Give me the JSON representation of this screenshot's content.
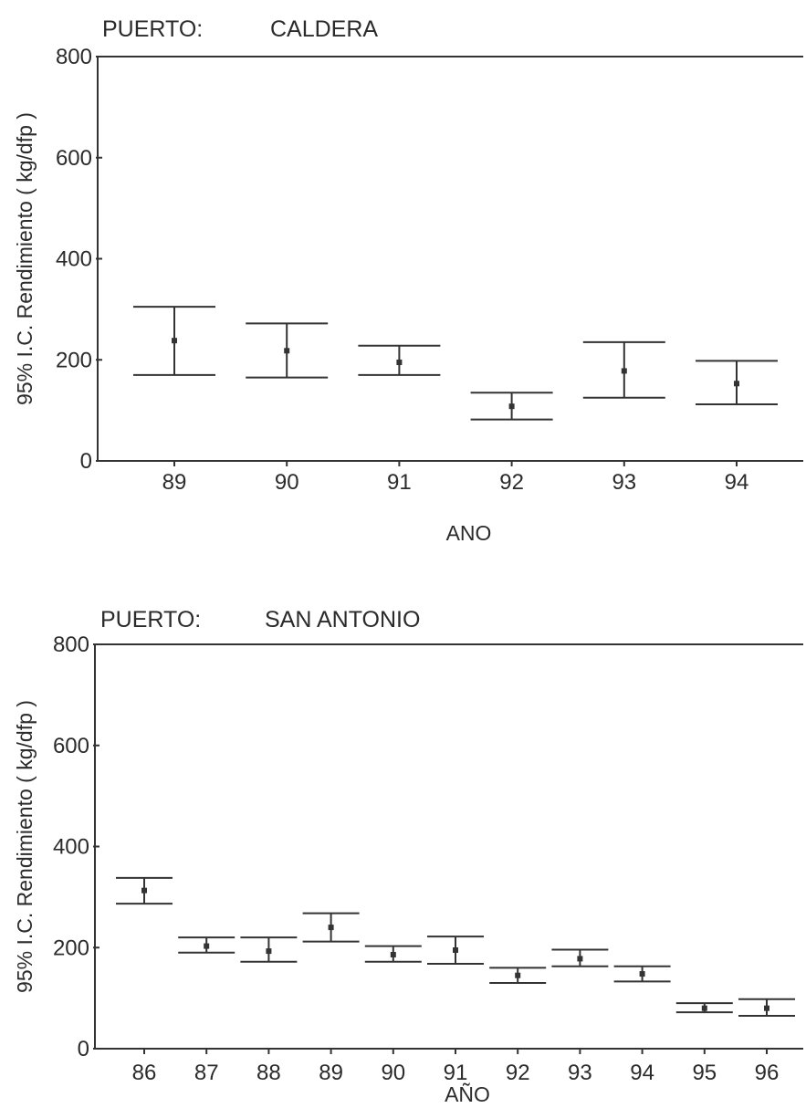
{
  "chart_data": [
    {
      "type": "errorbar",
      "title_prefix": "PUERTO:",
      "title": "CALDERA",
      "xlabel": "ANO",
      "ylabel": "95% I.C. Rendimiento ( kg/dfp )",
      "ylim": [
        0,
        800
      ],
      "yticks": [
        "0",
        "200",
        "400",
        "600",
        "800"
      ],
      "grid": false,
      "categories": [
        "89",
        "90",
        "91",
        "92",
        "93",
        "94"
      ],
      "mean": [
        238,
        218,
        195,
        108,
        178,
        153
      ],
      "lower": [
        170,
        165,
        170,
        82,
        125,
        112
      ],
      "upper": [
        305,
        272,
        228,
        135,
        235,
        198
      ]
    },
    {
      "type": "errorbar",
      "title_prefix": "PUERTO:",
      "title": "SAN ANTONIO",
      "xlabel": "AÑO",
      "ylabel": "95% I.C. Rendimiento ( kg/dfp )",
      "ylim": [
        0,
        800
      ],
      "yticks": [
        "0",
        "200",
        "400",
        "600",
        "800"
      ],
      "grid": false,
      "categories": [
        "86",
        "87",
        "88",
        "89",
        "90",
        "91",
        "92",
        "93",
        "94",
        "95",
        "96"
      ],
      "mean": [
        313,
        203,
        193,
        240,
        186,
        195,
        145,
        178,
        148,
        80,
        80
      ],
      "lower": [
        287,
        190,
        172,
        212,
        172,
        168,
        130,
        163,
        133,
        72,
        65
      ],
      "upper": [
        338,
        220,
        220,
        268,
        203,
        222,
        160,
        196,
        163,
        90,
        98
      ]
    }
  ]
}
